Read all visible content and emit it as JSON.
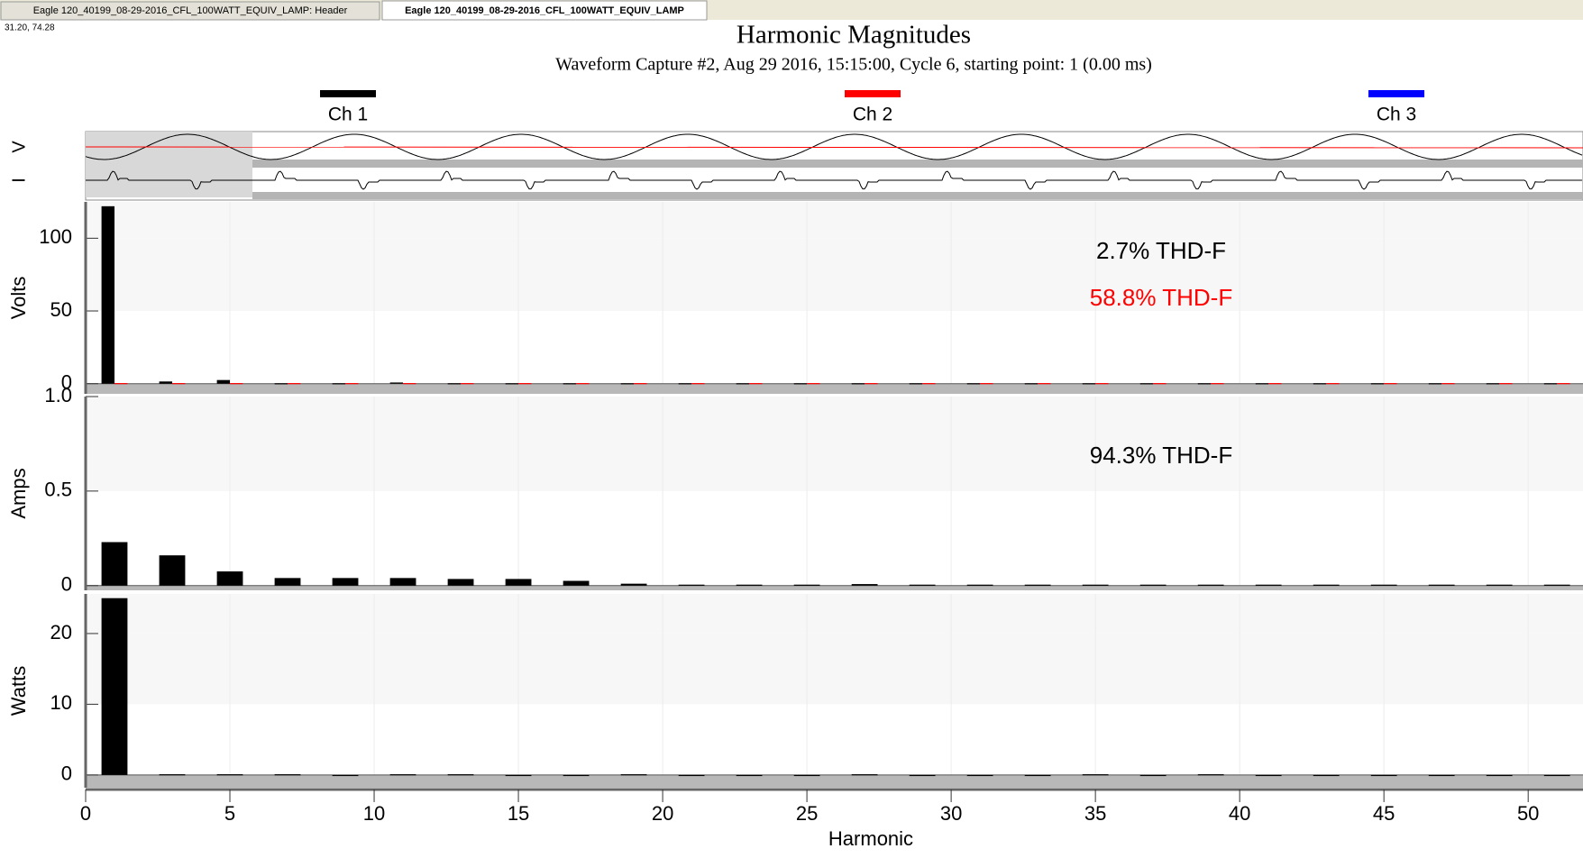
{
  "tabs": [
    "Eagle 120_40199_08-29-2016_CFL_100WATT_EQUIV_LAMP: Header",
    "Eagle 120_40199_08-29-2016_CFL_100WATT_EQUIV_LAMP"
  ],
  "cursor_readout": "31.20, 74.28",
  "title": "Harmonic Magnitudes",
  "subtitle": "Waveform Capture #2, Aug 29 2016, 15:15:00, Cycle 6,  starting point: 1  (0.00 ms)",
  "legend": [
    {
      "name": "Ch 1",
      "color": "#000000"
    },
    {
      "name": "Ch 2",
      "color": "#ff0000"
    },
    {
      "name": "Ch 3",
      "color": "#0000ff"
    }
  ],
  "waveform_labels": [
    "I",
    "V"
  ],
  "chart_data": [
    {
      "type": "bar",
      "ylabel": "Volts",
      "x": [
        1,
        3,
        5,
        7,
        9,
        11,
        13,
        15,
        17,
        19,
        21,
        23,
        25,
        27,
        29,
        31,
        33,
        35,
        37,
        39,
        41,
        43,
        45,
        47,
        49,
        51
      ],
      "series": [
        {
          "name": "Ch 1",
          "color": "#000000",
          "values": [
            122,
            1.5,
            2.5,
            0.3,
            0.3,
            0.8,
            0.3,
            0.3,
            0.3,
            0.3,
            0.3,
            0.3,
            0.3,
            0.3,
            0.3,
            0.3,
            0.3,
            0.3,
            0.3,
            0.3,
            0.3,
            0.3,
            0.3,
            0.3,
            0.3,
            0.3
          ]
        },
        {
          "name": "Ch 2",
          "color": "#ff0000",
          "values": [
            0.4,
            0.4,
            0.4,
            0.4,
            0.4,
            0.4,
            0.4,
            0.4,
            0.4,
            0.4,
            0.4,
            0.4,
            0.4,
            0.4,
            0.4,
            0.4,
            0.4,
            0.4,
            0.4,
            0.4,
            0.4,
            0.4,
            0.4,
            0.4,
            0.4,
            0.4
          ]
        }
      ],
      "ylim": [
        -7,
        125
      ],
      "yticks": [
        0,
        50,
        100
      ],
      "annotations": [
        {
          "text": "2.7% THD-F",
          "color": "#000000"
        },
        {
          "text": "58.8% THD-F",
          "color": "#ff0000"
        }
      ]
    },
    {
      "type": "bar",
      "ylabel": "Amps",
      "x": [
        1,
        3,
        5,
        7,
        9,
        11,
        13,
        15,
        17,
        19,
        21,
        23,
        25,
        27,
        29,
        31,
        33,
        35,
        37,
        39,
        41,
        43,
        45,
        47,
        49,
        51
      ],
      "series": [
        {
          "name": "Ch 1",
          "color": "#000000",
          "values": [
            0.23,
            0.16,
            0.075,
            0.04,
            0.04,
            0.04,
            0.035,
            0.035,
            0.025,
            0.01,
            0.005,
            0.005,
            0.005,
            0.008,
            0.005,
            0.005,
            0.005,
            0.005,
            0.005,
            0.005,
            0.005,
            0.005,
            0.005,
            0.005,
            0.005,
            0.005
          ]
        }
      ],
      "ylim": [
        -0.025,
        1.0
      ],
      "yticks": [
        0,
        0.5,
        {
          "value": 1,
          "label": "1.0"
        }
      ],
      "annotations": [
        {
          "text": "94.3% THD-F",
          "color": "#000000"
        }
      ]
    },
    {
      "type": "bar",
      "ylabel": "Watts",
      "x": [
        1,
        3,
        5,
        7,
        9,
        11,
        13,
        15,
        17,
        19,
        21,
        23,
        25,
        27,
        29,
        31,
        33,
        35,
        37,
        39,
        41,
        43,
        45,
        47,
        49,
        51
      ],
      "series": [
        {
          "name": "Ch 1",
          "color": "#000000",
          "values": [
            25,
            0.1,
            0.1,
            0.1,
            0,
            0.1,
            0.1,
            0,
            0,
            0.1,
            0,
            0,
            0,
            0.1,
            0,
            0,
            0,
            0.1,
            0,
            0.1,
            0,
            0,
            0,
            0,
            0,
            0
          ]
        }
      ],
      "ylim": [
        -1.8,
        25.6
      ],
      "yticks": [
        0,
        10,
        20
      ],
      "xlim": [
        0,
        51.9
      ],
      "xticks": [
        0,
        5,
        10,
        15,
        20,
        25,
        30,
        35,
        40,
        45,
        50
      ],
      "xlabel": "Harmonic"
    }
  ]
}
